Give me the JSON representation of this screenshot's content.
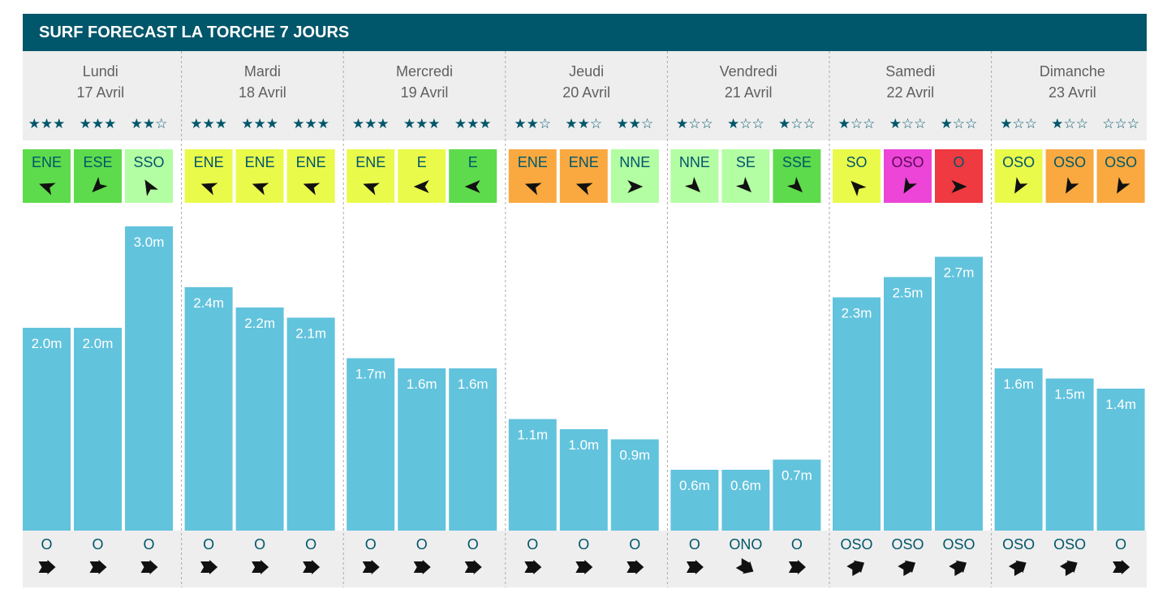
{
  "title": "SURF FORECAST LA TORCHE 7 JOURS",
  "colors": {
    "header": "#00566a",
    "bar": "#62c3dd",
    "panel": "#eeeeee",
    "separator": "#aaaaaa",
    "text_dark": "#00566a",
    "day_text": "#606060"
  },
  "wind_colors": {
    "green": "#5edb4c",
    "light_green": "#b3fda3",
    "yellow": "#e9fa4b",
    "orange": "#f9a940",
    "magenta": "#ec45d7",
    "red": "#ee3a40"
  },
  "chart_data": {
    "type": "bar",
    "unit": "m",
    "ylim": [
      0,
      3.0
    ],
    "days": [
      {
        "name": "Lundi",
        "date": "17 Avril",
        "slots": [
          {
            "stars": "★★★",
            "wind_dir": "ENE",
            "wind_color": "green",
            "wind_arrow_deg": 200,
            "height": 2.0,
            "height_label": "2.0m",
            "swell_dir": "O",
            "swell_arrow_deg": 0
          },
          {
            "stars": "★★★",
            "wind_dir": "ESE",
            "wind_color": "green",
            "wind_arrow_deg": 135,
            "height": 2.0,
            "height_label": "2.0m",
            "swell_dir": "O",
            "swell_arrow_deg": 0
          },
          {
            "stars": "★★☆",
            "wind_dir": "SSO",
            "wind_color": "light_green",
            "wind_arrow_deg": 240,
            "height": 3.0,
            "height_label": "3.0m",
            "swell_dir": "O",
            "swell_arrow_deg": 0
          }
        ]
      },
      {
        "name": "Mardi",
        "date": "18 Avril",
        "slots": [
          {
            "stars": "★★★",
            "wind_dir": "ENE",
            "wind_color": "yellow",
            "wind_arrow_deg": 200,
            "height": 2.4,
            "height_label": "2.4m",
            "swell_dir": "O",
            "swell_arrow_deg": 0
          },
          {
            "stars": "★★★",
            "wind_dir": "ENE",
            "wind_color": "yellow",
            "wind_arrow_deg": 200,
            "height": 2.2,
            "height_label": "2.2m",
            "swell_dir": "O",
            "swell_arrow_deg": 0
          },
          {
            "stars": "★★★",
            "wind_dir": "ENE",
            "wind_color": "yellow",
            "wind_arrow_deg": 200,
            "height": 2.1,
            "height_label": "2.1m",
            "swell_dir": "O",
            "swell_arrow_deg": 0
          }
        ]
      },
      {
        "name": "Mercredi",
        "date": "19 Avril",
        "slots": [
          {
            "stars": "★★★",
            "wind_dir": "ENE",
            "wind_color": "yellow",
            "wind_arrow_deg": 200,
            "height": 1.7,
            "height_label": "1.7m",
            "swell_dir": "O",
            "swell_arrow_deg": 0
          },
          {
            "stars": "★★★",
            "wind_dir": "E",
            "wind_color": "yellow",
            "wind_arrow_deg": 180,
            "height": 1.6,
            "height_label": "1.6m",
            "swell_dir": "O",
            "swell_arrow_deg": 0
          },
          {
            "stars": "★★★",
            "wind_dir": "E",
            "wind_color": "green",
            "wind_arrow_deg": 180,
            "height": 1.6,
            "height_label": "1.6m",
            "swell_dir": "O",
            "swell_arrow_deg": 0
          }
        ]
      },
      {
        "name": "Jeudi",
        "date": "20 Avril",
        "slots": [
          {
            "stars": "★★☆",
            "wind_dir": "ENE",
            "wind_color": "orange",
            "wind_arrow_deg": 200,
            "height": 1.1,
            "height_label": "1.1m",
            "swell_dir": "O",
            "swell_arrow_deg": 0
          },
          {
            "stars": "★★☆",
            "wind_dir": "ENE",
            "wind_color": "orange",
            "wind_arrow_deg": 200,
            "height": 1.0,
            "height_label": "1.0m",
            "swell_dir": "O",
            "swell_arrow_deg": 0
          },
          {
            "stars": "★★☆",
            "wind_dir": "NNE",
            "wind_color": "light_green",
            "wind_arrow_deg": 0,
            "height": 0.9,
            "height_label": "0.9m",
            "swell_dir": "O",
            "swell_arrow_deg": 0
          }
        ]
      },
      {
        "name": "Vendredi",
        "date": "21 Avril",
        "slots": [
          {
            "stars": "★☆☆",
            "wind_dir": "NNE",
            "wind_color": "light_green",
            "wind_arrow_deg": 45,
            "height": 0.6,
            "height_label": "0.6m",
            "swell_dir": "O",
            "swell_arrow_deg": 0
          },
          {
            "stars": "★☆☆",
            "wind_dir": "SE",
            "wind_color": "light_green",
            "wind_arrow_deg": 45,
            "height": 0.6,
            "height_label": "0.6m",
            "swell_dir": "ONO",
            "swell_arrow_deg": 30
          },
          {
            "stars": "★☆☆",
            "wind_dir": "SSE",
            "wind_color": "green",
            "wind_arrow_deg": 45,
            "height": 0.7,
            "height_label": "0.7m",
            "swell_dir": "O",
            "swell_arrow_deg": 0
          }
        ]
      },
      {
        "name": "Samedi",
        "date": "22 Avril",
        "slots": [
          {
            "stars": "★☆☆",
            "wind_dir": "SO",
            "wind_color": "yellow",
            "wind_arrow_deg": 225,
            "height": 2.3,
            "height_label": "2.3m",
            "swell_dir": "OSO",
            "swell_arrow_deg": -30
          },
          {
            "stars": "★☆☆",
            "wind_dir": "OSO",
            "wind_color": "magenta",
            "wind_arrow_deg": 120,
            "height": 2.5,
            "height_label": "2.5m",
            "swell_dir": "OSO",
            "swell_arrow_deg": -30
          },
          {
            "stars": "★☆☆",
            "wind_dir": "O",
            "wind_color": "red",
            "wind_arrow_deg": 0,
            "height": 2.7,
            "height_label": "2.7m",
            "swell_dir": "OSO",
            "swell_arrow_deg": -30
          }
        ]
      },
      {
        "name": "Dimanche",
        "date": "23 Avril",
        "slots": [
          {
            "stars": "★☆☆",
            "wind_dir": "OSO",
            "wind_color": "yellow",
            "wind_arrow_deg": 120,
            "height": 1.6,
            "height_label": "1.6m",
            "swell_dir": "OSO",
            "swell_arrow_deg": -30
          },
          {
            "stars": "★☆☆",
            "wind_dir": "OSO",
            "wind_color": "orange",
            "wind_arrow_deg": 120,
            "height": 1.5,
            "height_label": "1.5m",
            "swell_dir": "OSO",
            "swell_arrow_deg": -30
          },
          {
            "stars": "☆☆☆",
            "wind_dir": "OSO",
            "wind_color": "orange",
            "wind_arrow_deg": 120,
            "height": 1.4,
            "height_label": "1.4m",
            "swell_dir": "O",
            "swell_arrow_deg": 0
          }
        ]
      }
    ]
  }
}
